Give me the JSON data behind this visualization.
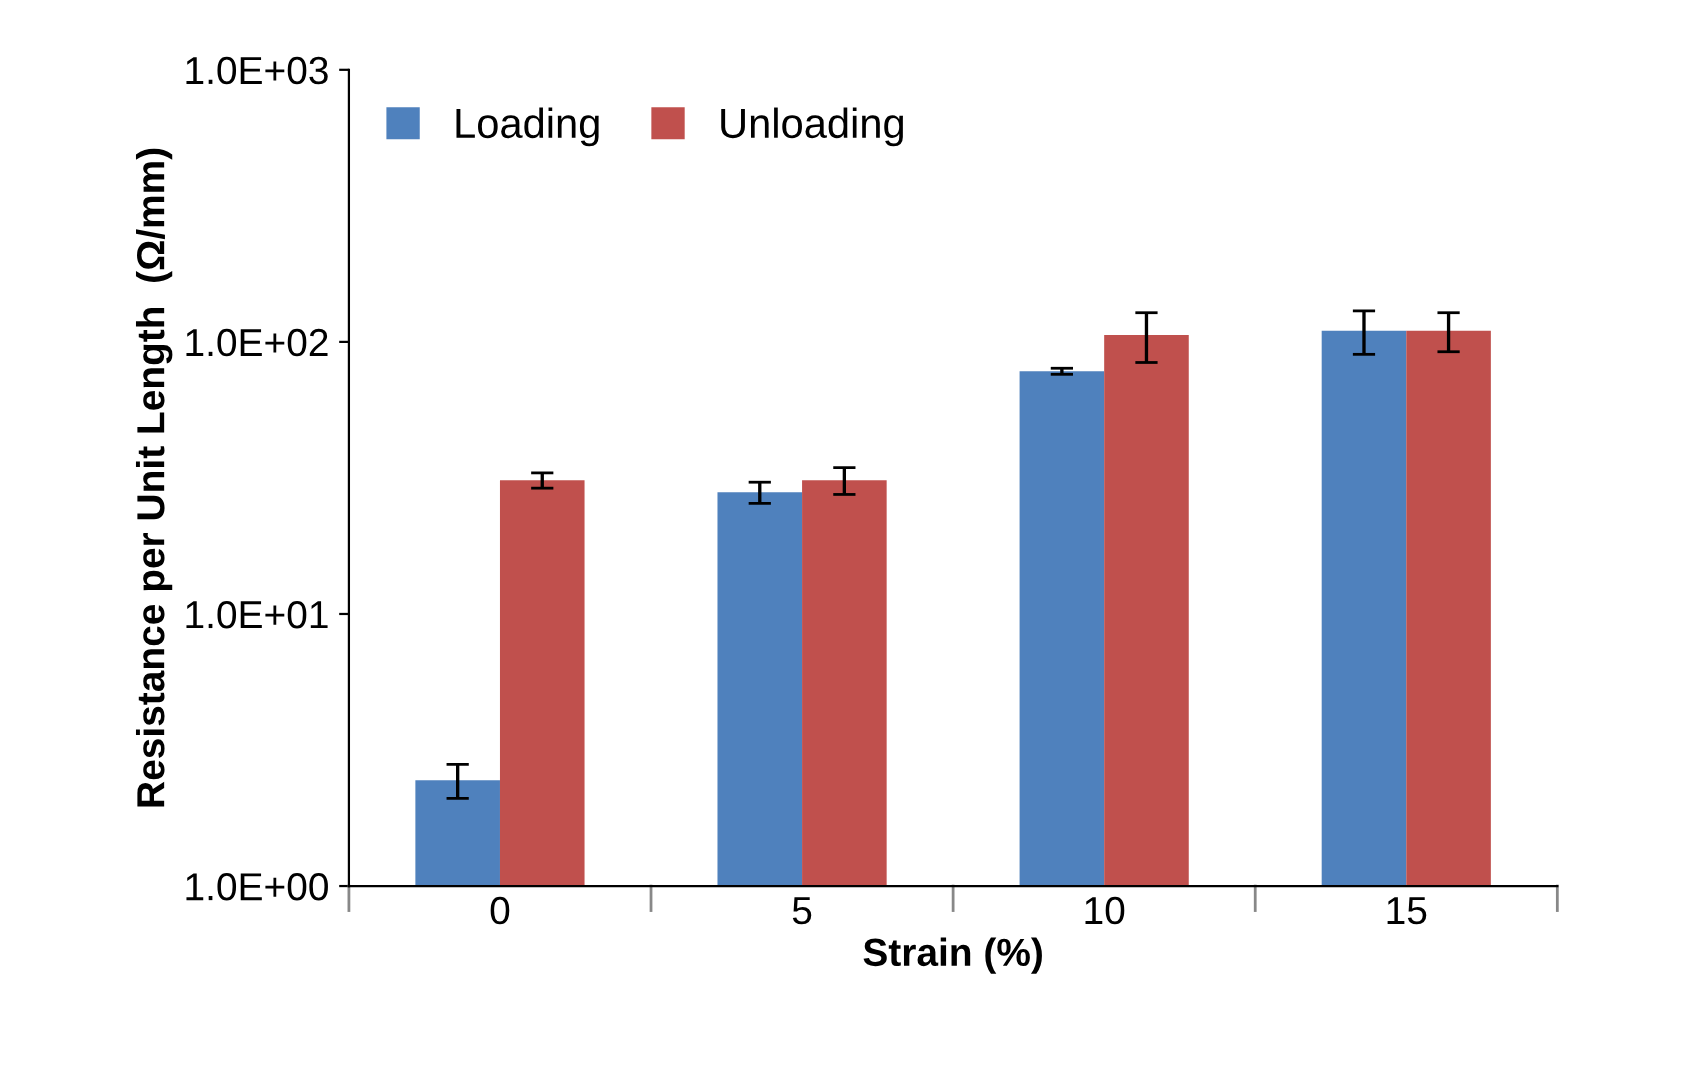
{
  "chart_data": {
    "type": "bar",
    "xlabel": "Strain (%)",
    "ylabel": "Resistance per Unit Length  (Ω/mm)",
    "categories": [
      "0",
      "5",
      "10",
      "15"
    ],
    "series": [
      {
        "name": "Loading",
        "color": "#4f81bd",
        "values": [
          2.45,
          28,
          78,
          110
        ],
        "errors": [
          0.35,
          2.5,
          2,
          20
        ]
      },
      {
        "name": "Unloading",
        "color": "#c0504d",
        "values": [
          31,
          31,
          106,
          110
        ],
        "errors": [
          2,
          3.5,
          22,
          18
        ]
      }
    ],
    "log": true,
    "ylim": [
      1,
      1000
    ],
    "yticks": [
      {
        "value": 1,
        "label": "1.0E+00"
      },
      {
        "value": 10,
        "label": "1.0E+01"
      },
      {
        "value": 100,
        "label": "1.0E+02"
      },
      {
        "value": 1000,
        "label": "1.0E+03"
      }
    ],
    "grid": false,
    "legend": "top left"
  }
}
